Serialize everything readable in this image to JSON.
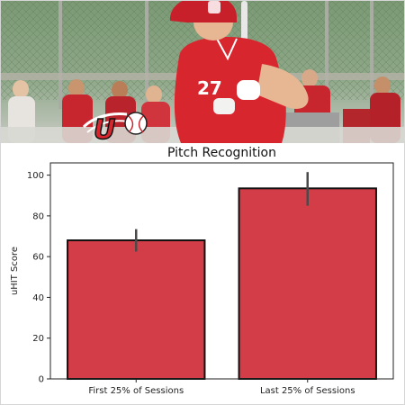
{
  "chart_data": {
    "type": "bar",
    "title": "Pitch Recognition",
    "ylabel": "uHIT Score",
    "xlabel": "",
    "categories": [
      "First 25% of Sessions",
      "Last 25% of Sessions"
    ],
    "values": [
      68,
      93.5
    ],
    "error_bars": [
      {
        "low": 62.5,
        "high": 73.5
      },
      {
        "low": 85,
        "high": 101.5
      }
    ],
    "ylim": [
      0,
      106
    ],
    "yticks": [
      0,
      20,
      40,
      60,
      80,
      100
    ],
    "grid": false,
    "legend": "none",
    "bar_color": "#d33d48",
    "bar_edge_color": "#111111",
    "error_color": "#4a4a4a"
  },
  "header_image": {
    "jersey_number": "27",
    "logo_letter": "U",
    "colors": {
      "jersey": "#d8262f",
      "helmet": "#c8202a",
      "fence": "#6f8f6a"
    }
  }
}
